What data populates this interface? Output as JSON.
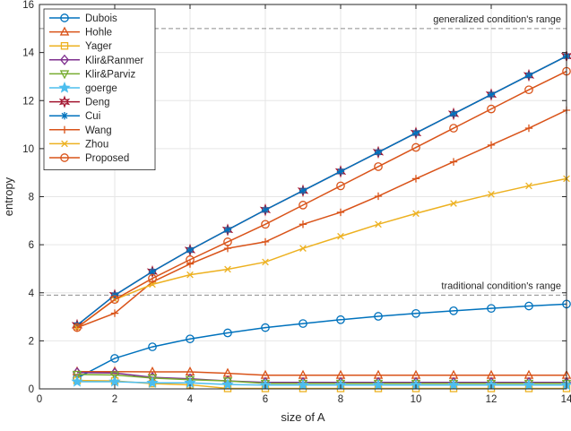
{
  "chart_data": {
    "type": "line",
    "title": "",
    "xlabel": "size of A",
    "ylabel": "entropy",
    "xlim": [
      0,
      14
    ],
    "ylim": [
      0,
      16
    ],
    "xticks": [
      0,
      2,
      4,
      6,
      8,
      10,
      12,
      14
    ],
    "yticks": [
      0,
      2,
      4,
      6,
      8,
      10,
      12,
      14,
      16
    ],
    "grid": true,
    "legend_position": "top-left",
    "reference_lines": [
      {
        "y": 15,
        "label": "generalized condition's range"
      },
      {
        "y": 3.9,
        "label": "traditional condition's range"
      }
    ],
    "x": [
      1,
      2,
      3,
      4,
      5,
      6,
      7,
      8,
      9,
      10,
      11,
      12,
      13,
      14
    ],
    "series": [
      {
        "name": "Dubois",
        "color": "#0072bd",
        "marker": "circle",
        "values": [
          0.45,
          1.27,
          1.75,
          2.08,
          2.33,
          2.55,
          2.72,
          2.88,
          3.02,
          3.14,
          3.25,
          3.35,
          3.45,
          3.53
        ]
      },
      {
        "name": "Hohle",
        "color": "#d95319",
        "marker": "triangle-up",
        "values": [
          0.72,
          0.72,
          0.71,
          0.71,
          0.65,
          0.57,
          0.57,
          0.57,
          0.57,
          0.57,
          0.57,
          0.57,
          0.57,
          0.57
        ]
      },
      {
        "name": "Yager",
        "color": "#edb120",
        "marker": "square",
        "values": [
          0.35,
          0.33,
          0.22,
          0.17,
          0.02,
          0.02,
          0.02,
          0.02,
          0.02,
          0.02,
          0.02,
          0.02,
          0.02,
          0.02
        ]
      },
      {
        "name": "Klir&Ranmer",
        "color": "#7e2f8e",
        "marker": "diamond",
        "values": [
          0.68,
          0.66,
          0.48,
          0.42,
          0.33,
          0.27,
          0.27,
          0.27,
          0.27,
          0.27,
          0.27,
          0.27,
          0.27,
          0.27
        ]
      },
      {
        "name": "Klir&Parviz",
        "color": "#77ac30",
        "marker": "triangle-down",
        "values": [
          0.6,
          0.58,
          0.45,
          0.38,
          0.33,
          0.23,
          0.23,
          0.23,
          0.23,
          0.23,
          0.23,
          0.23,
          0.23,
          0.23
        ]
      },
      {
        "name": "goerge",
        "color": "#4dbeee",
        "marker": "star",
        "values": [
          0.3,
          0.3,
          0.25,
          0.25,
          0.18,
          0.16,
          0.16,
          0.16,
          0.16,
          0.16,
          0.16,
          0.16,
          0.16,
          0.16
        ]
      },
      {
        "name": "Deng",
        "color": "#a2142f",
        "marker": "hexagram",
        "values": [
          2.65,
          3.9,
          4.88,
          5.78,
          6.62,
          7.45,
          8.25,
          9.05,
          9.85,
          10.65,
          11.45,
          12.25,
          13.05,
          13.85
        ]
      },
      {
        "name": "Cui",
        "color": "#0072bd",
        "marker": "asterisk",
        "values": [
          2.65,
          3.9,
          4.88,
          5.78,
          6.62,
          7.45,
          8.25,
          9.05,
          9.85,
          10.65,
          11.45,
          12.25,
          13.05,
          13.85
        ]
      },
      {
        "name": "Wang",
        "color": "#d95319",
        "marker": "plus",
        "values": [
          2.55,
          3.15,
          4.45,
          5.2,
          5.85,
          6.12,
          6.85,
          7.35,
          8.02,
          8.75,
          9.45,
          10.15,
          10.85,
          11.6
        ]
      },
      {
        "name": "Zhou",
        "color": "#edb120",
        "marker": "x",
        "values": [
          2.55,
          3.72,
          4.35,
          4.75,
          4.98,
          5.28,
          5.85,
          6.35,
          6.85,
          7.3,
          7.72,
          8.1,
          8.45,
          8.75
        ]
      },
      {
        "name": "Proposed",
        "color": "#d95319",
        "marker": "circle",
        "values": [
          2.55,
          3.72,
          4.6,
          5.38,
          6.12,
          6.85,
          7.65,
          8.45,
          9.25,
          10.05,
          10.85,
          11.65,
          12.45,
          13.22
        ]
      }
    ]
  }
}
